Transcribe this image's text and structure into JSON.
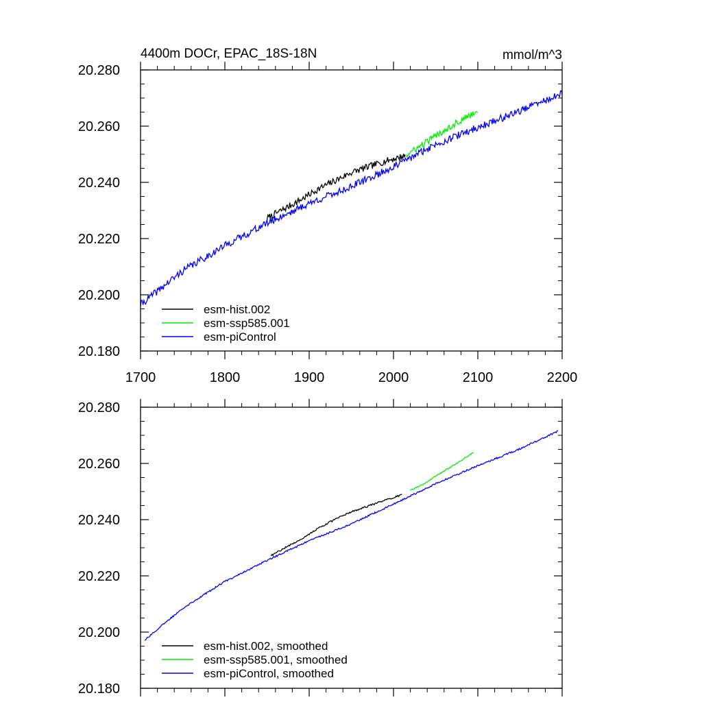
{
  "chart_data": [
    {
      "type": "line",
      "title": "4400m DOCr, EPAC_18S-18N",
      "units": "mmol/m^3",
      "xlim": [
        1700,
        2200
      ],
      "ylim": [
        20.18,
        20.28
      ],
      "xticks": [
        1700,
        1800,
        1900,
        2000,
        2100,
        2200
      ],
      "xtick_labels": [
        "1700",
        "1800",
        "1900",
        "2000",
        "2100",
        "2200"
      ],
      "yticks": [
        20.18,
        20.2,
        20.22,
        20.24,
        20.26,
        20.28
      ],
      "ytick_labels": [
        "20.180",
        "20.200",
        "20.220",
        "20.240",
        "20.260",
        "20.280"
      ],
      "legend_position": "bottom-left",
      "series": [
        {
          "name": "esm-hist.002",
          "color": "#000000",
          "x": [
            1850,
            1870,
            1890,
            1910,
            1930,
            1950,
            1970,
            1990,
            2014
          ],
          "y": [
            20.2272,
            20.2305,
            20.2338,
            20.2375,
            20.2405,
            20.2435,
            20.2455,
            20.2475,
            20.2495
          ],
          "noise": 0.0012
        },
        {
          "name": "esm-ssp585.001",
          "color": "#00ee00",
          "x": [
            2015,
            2030,
            2045,
            2060,
            2075,
            2090,
            2100
          ],
          "y": [
            20.2495,
            20.2525,
            20.2555,
            20.2585,
            20.2612,
            20.2638,
            20.2655
          ],
          "noise": 0.0012
        },
        {
          "name": "esm-piControl",
          "color": "#0000ff",
          "x": [
            1700,
            1750,
            1800,
            1850,
            1900,
            1950,
            2000,
            2050,
            2100,
            2150,
            2200
          ],
          "y": [
            20.1965,
            20.2085,
            20.2175,
            20.2255,
            20.2325,
            20.2385,
            20.2455,
            20.2535,
            20.2595,
            20.2655,
            20.2715
          ],
          "noise": 0.0013
        }
      ]
    },
    {
      "type": "line",
      "title": "",
      "units": "",
      "xlim": [
        1700,
        2200
      ],
      "ylim": [
        20.18,
        20.28
      ],
      "xticks": [
        1700,
        1800,
        1900,
        2000,
        2100,
        2200
      ],
      "xtick_labels": [],
      "yticks": [
        20.18,
        20.2,
        20.22,
        20.24,
        20.26,
        20.28
      ],
      "ytick_labels": [
        "20.180",
        "20.200",
        "20.220",
        "20.240",
        "20.260",
        "20.280"
      ],
      "legend_position": "bottom-left",
      "series": [
        {
          "name": "esm-hist.002, smoothed",
          "color": "#000000",
          "x": [
            1855,
            1870,
            1890,
            1910,
            1930,
            1950,
            1970,
            1990,
            2010
          ],
          "y": [
            20.2272,
            20.2298,
            20.233,
            20.2368,
            20.24,
            20.2428,
            20.2448,
            20.247,
            20.2488
          ],
          "noise": 0.0003
        },
        {
          "name": "esm-ssp585.001, smoothed",
          "color": "#00ee00",
          "x": [
            2020,
            2035,
            2050,
            2065,
            2080,
            2095
          ],
          "y": [
            20.2505,
            20.2525,
            20.2555,
            20.2582,
            20.261,
            20.264
          ],
          "noise": 0.0002
        },
        {
          "name": "esm-piControl, smoothed",
          "color": "#0000ff",
          "x": [
            1705,
            1750,
            1800,
            1850,
            1900,
            1950,
            2000,
            2050,
            2100,
            2150,
            2195
          ],
          "y": [
            20.1972,
            20.2085,
            20.218,
            20.2255,
            20.2325,
            20.2385,
            20.2455,
            20.2528,
            20.2592,
            20.2652,
            20.2715
          ],
          "noise": 0.0003
        }
      ]
    }
  ]
}
